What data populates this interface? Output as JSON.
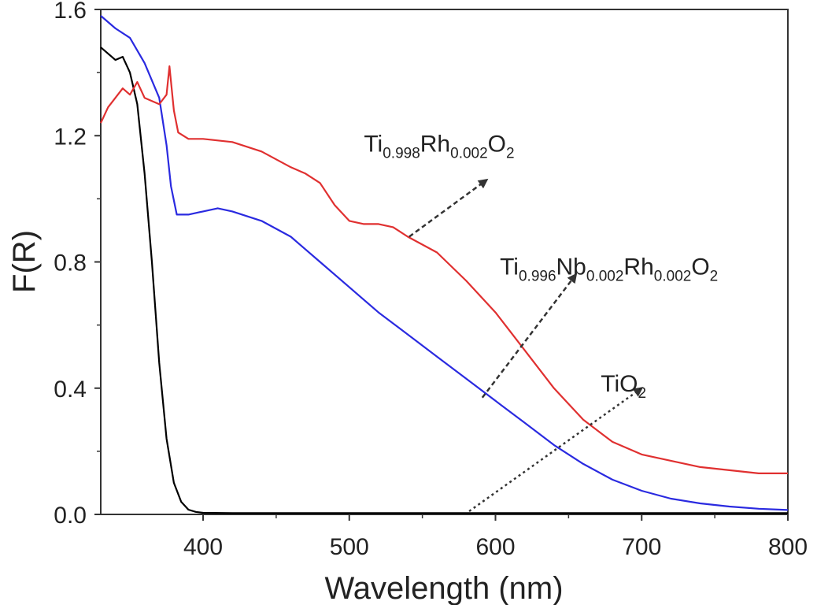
{
  "chart_data": {
    "type": "line",
    "xlabel": "Wavelength (nm)",
    "ylabel": "F(R)",
    "xlim": [
      330,
      800
    ],
    "ylim": [
      0,
      1.6
    ],
    "xticks": [
      400,
      500,
      600,
      700,
      800
    ],
    "xtick_labels": [
      "400",
      "500",
      "600",
      "700",
      "800"
    ],
    "yticks": [
      0,
      0.4,
      0.8,
      1.2,
      1.6
    ],
    "ytick_labels": [
      "0.0",
      "0.4",
      "0.8",
      "1.2",
      "1.6"
    ],
    "grid": false,
    "legend": "none",
    "series": [
      {
        "key": "tio2",
        "color": "#000000",
        "x": [
          330,
          335,
          340,
          345,
          350,
          355,
          360,
          365,
          370,
          375,
          380,
          385,
          390,
          395,
          400,
          420,
          450,
          500,
          600,
          700,
          800
        ],
        "y": [
          1.48,
          1.46,
          1.44,
          1.45,
          1.4,
          1.3,
          1.08,
          0.8,
          0.48,
          0.24,
          0.1,
          0.04,
          0.015,
          0.008,
          0.005,
          0.004,
          0.004,
          0.004,
          0.004,
          0.004,
          0.004
        ]
      },
      {
        "key": "nb_rh",
        "color": "#2a2ae0",
        "x": [
          330,
          340,
          350,
          360,
          370,
          375,
          378,
          382,
          390,
          400,
          410,
          420,
          440,
          460,
          480,
          500,
          520,
          540,
          560,
          580,
          600,
          620,
          640,
          660,
          680,
          700,
          720,
          740,
          760,
          780,
          800
        ],
        "y": [
          1.58,
          1.54,
          1.51,
          1.43,
          1.32,
          1.17,
          1.04,
          0.95,
          0.95,
          0.96,
          0.97,
          0.96,
          0.93,
          0.88,
          0.8,
          0.72,
          0.64,
          0.57,
          0.5,
          0.43,
          0.36,
          0.29,
          0.22,
          0.16,
          0.11,
          0.075,
          0.05,
          0.035,
          0.025,
          0.018,
          0.014
        ]
      },
      {
        "key": "rh",
        "color": "#e03030",
        "x": [
          330,
          335,
          340,
          345,
          350,
          355,
          360,
          365,
          370,
          375,
          377,
          380,
          383,
          390,
          400,
          420,
          440,
          460,
          470,
          480,
          490,
          500,
          510,
          520,
          530,
          540,
          560,
          580,
          600,
          620,
          640,
          660,
          680,
          700,
          720,
          740,
          760,
          780,
          800
        ],
        "y": [
          1.24,
          1.29,
          1.32,
          1.35,
          1.33,
          1.37,
          1.32,
          1.31,
          1.3,
          1.33,
          1.42,
          1.28,
          1.21,
          1.19,
          1.19,
          1.18,
          1.15,
          1.1,
          1.08,
          1.05,
          0.98,
          0.93,
          0.92,
          0.92,
          0.91,
          0.88,
          0.83,
          0.74,
          0.64,
          0.52,
          0.4,
          0.3,
          0.23,
          0.19,
          0.17,
          0.15,
          0.14,
          0.13,
          0.13
        ]
      }
    ],
    "annotations": [
      {
        "key": "rh",
        "label": {
          "main1": "Ti",
          "sub1": "0.998",
          "main2": "Rh",
          "sub2": "0.002",
          "main3": "O",
          "sub3": "2"
        },
        "text_at": [
          510,
          1.15
        ],
        "arrow_from": [
          541,
          0.88
        ],
        "arrow_to": [
          594,
          1.06
        ],
        "arrow_style": "dashed"
      },
      {
        "key": "nb_rh",
        "label": {
          "main1": "Ti",
          "sub1": "0.996",
          "main2": "Nb",
          "sub2": "0.002",
          "main3": "Rh",
          "sub3": "0.002",
          "main4": "O",
          "sub4": "2"
        },
        "text_at": [
          603,
          0.76
        ],
        "arrow_from": [
          591,
          0.37
        ],
        "arrow_to": [
          655,
          0.76
        ],
        "arrow_style": "dashed"
      },
      {
        "key": "tio2",
        "label": {
          "main1": "TiO",
          "sub1": "2"
        },
        "text_at": [
          672,
          0.39
        ],
        "arrow_from": [
          582,
          0.01
        ],
        "arrow_to": [
          700,
          0.4
        ],
        "arrow_style": "dotted"
      }
    ]
  }
}
